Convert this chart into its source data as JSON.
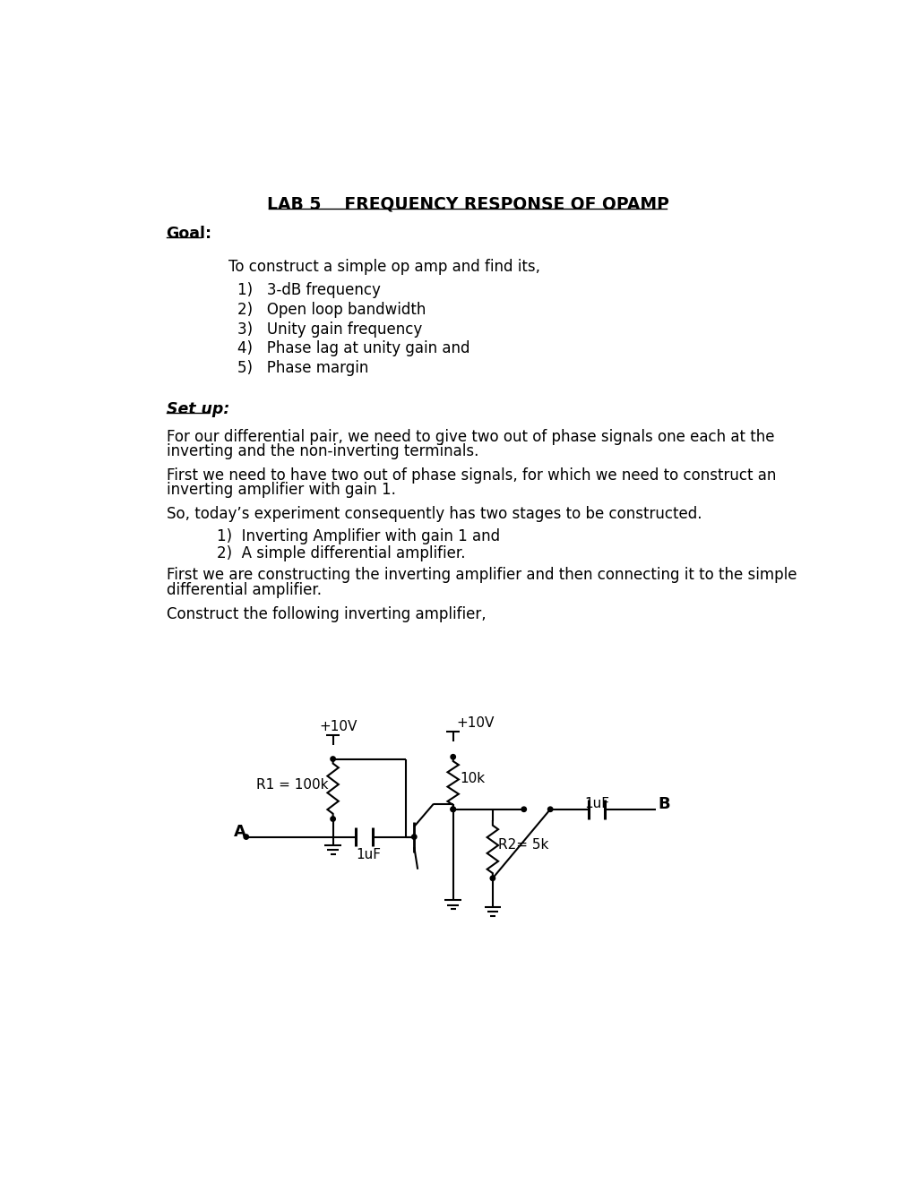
{
  "title": "LAB 5    FREQUENCY RESPONSE OF OPAMP",
  "background_color": "#ffffff",
  "text_color": "#000000",
  "sections": {
    "goal_header": "Goal:",
    "goal_intro": "To construct a simple op amp and find its,",
    "goal_items": [
      "3-dB frequency",
      "Open loop bandwidth",
      "Unity gain frequency",
      "Phase lag at unity gain and",
      "Phase margin"
    ],
    "setup_header": "Set up:",
    "setup_para1_line1": "For our differential pair, we need to give two out of phase signals one each at the",
    "setup_para1_line2": "inverting and the non-inverting terminals.",
    "setup_para2_line1": "First we need to have two out of phase signals, for which we need to construct an",
    "setup_para2_line2": "inverting amplifier with gain 1.",
    "setup_para3": "So, today’s experiment consequently has two stages to be constructed.",
    "setup_items": [
      "Inverting Amplifier with gain 1 and",
      "A simple differential amplifier."
    ],
    "setup_para4_line1": "First we are constructing the inverting amplifier and then connecting it to the simple",
    "setup_para4_line2": "differential amplifier.",
    "setup_para5": "Construct the following inverting amplifier,"
  }
}
